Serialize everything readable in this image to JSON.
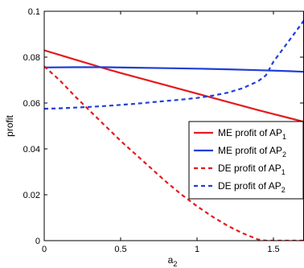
{
  "chart_data": {
    "type": "line",
    "title": "",
    "xlabel": "a",
    "xlabel_subscript": "2",
    "ylabel": "profit",
    "xlim": [
      0,
      1.7
    ],
    "ylim": [
      0,
      0.1
    ],
    "xticks": [
      0,
      0.5,
      1,
      1.5
    ],
    "xtick_labels": [
      "0",
      "0.5",
      "1",
      "1.5"
    ],
    "yticks": [
      0,
      0.02,
      0.04,
      0.06,
      0.08,
      0.1
    ],
    "ytick_labels": [
      "0",
      "0.02",
      "0.04",
      "0.06",
      "0.08",
      "0.1"
    ],
    "grid": false,
    "legend_position": "center-right",
    "series": [
      {
        "name": "ME profit of AP",
        "name_subscript": "1",
        "color": "#e41a1c",
        "style": "solid",
        "x": [
          0,
          0.1,
          0.2,
          0.3,
          0.4,
          0.5,
          0.6,
          0.7,
          0.8,
          0.9,
          1.0,
          1.1,
          1.2,
          1.3,
          1.4,
          1.5,
          1.6,
          1.7
        ],
        "y": [
          0.083,
          0.081,
          0.079,
          0.077,
          0.075,
          0.0731,
          0.0713,
          0.0695,
          0.0677,
          0.0659,
          0.0641,
          0.0623,
          0.0605,
          0.0587,
          0.0569,
          0.0552,
          0.0535,
          0.0518
        ]
      },
      {
        "name": "ME profit of AP",
        "name_subscript": "2",
        "color": "#1f3fd6",
        "style": "solid",
        "x": [
          0,
          0.2,
          0.4,
          0.6,
          0.8,
          1.0,
          1.2,
          1.4,
          1.6,
          1.7
        ],
        "y": [
          0.0755,
          0.0756,
          0.0756,
          0.0754,
          0.0752,
          0.075,
          0.0747,
          0.0743,
          0.0739,
          0.0736
        ]
      },
      {
        "name": "DE profit of AP",
        "name_subscript": "1",
        "color": "#e41a1c",
        "style": "dashed",
        "x": [
          0,
          0.1,
          0.2,
          0.3,
          0.4,
          0.5,
          0.6,
          0.7,
          0.8,
          0.9,
          1.0,
          1.1,
          1.2,
          1.3,
          1.4,
          1.45,
          1.5,
          1.6,
          1.7
        ],
        "y": [
          0.076,
          0.07,
          0.063,
          0.0565,
          0.05,
          0.0435,
          0.0375,
          0.0315,
          0.0255,
          0.02,
          0.015,
          0.0105,
          0.0065,
          0.0032,
          0.0005,
          0.0,
          0.0,
          0.0,
          0.0
        ]
      },
      {
        "name": "DE profit of AP",
        "name_subscript": "2",
        "color": "#1f3fd6",
        "style": "dashed",
        "x": [
          0,
          0.1,
          0.2,
          0.3,
          0.4,
          0.5,
          0.6,
          0.7,
          0.8,
          0.9,
          1.0,
          1.1,
          1.2,
          1.3,
          1.4,
          1.45,
          1.5,
          1.6,
          1.7
        ],
        "y": [
          0.0575,
          0.0577,
          0.058,
          0.0583,
          0.0587,
          0.0592,
          0.0597,
          0.0603,
          0.0609,
          0.0615,
          0.0622,
          0.0632,
          0.0645,
          0.0665,
          0.0695,
          0.072,
          0.078,
          0.087,
          0.096
        ]
      }
    ]
  }
}
